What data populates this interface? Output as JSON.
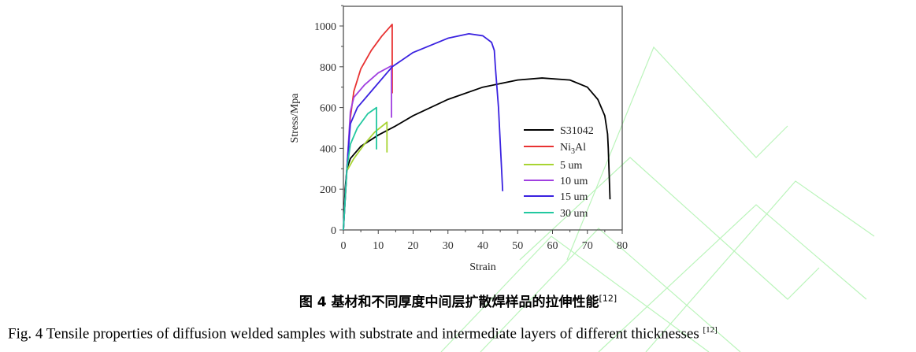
{
  "chart_data": {
    "type": "line",
    "title": "",
    "xlabel": "Strain",
    "ylabel": "Stress/Mpa",
    "xlim": [
      0,
      80
    ],
    "ylim": [
      0,
      1050
    ],
    "xticks": [
      0,
      10,
      20,
      30,
      40,
      50,
      60,
      70,
      80
    ],
    "yticks": [
      0,
      200,
      400,
      600,
      800,
      1000
    ],
    "grid": false,
    "legend_position": "right",
    "series": [
      {
        "name": "S31042",
        "color": "#000000",
        "points": [
          [
            0,
            0
          ],
          [
            0.5,
            200
          ],
          [
            1,
            300
          ],
          [
            2,
            350
          ],
          [
            5,
            410
          ],
          [
            10,
            465
          ],
          [
            15,
            510
          ],
          [
            20,
            560
          ],
          [
            30,
            640
          ],
          [
            40,
            700
          ],
          [
            50,
            735
          ],
          [
            57,
            745
          ],
          [
            65,
            735
          ],
          [
            70,
            700
          ],
          [
            73,
            640
          ],
          [
            75,
            560
          ],
          [
            75.8,
            470
          ],
          [
            76,
            400
          ],
          [
            76.5,
            150
          ]
        ]
      },
      {
        "name": "Ni3Al",
        "color": "#e83232",
        "points": [
          [
            0,
            0
          ],
          [
            1,
            300
          ],
          [
            2,
            550
          ],
          [
            3,
            680
          ],
          [
            5,
            790
          ],
          [
            8,
            880
          ],
          [
            11,
            950
          ],
          [
            14,
            1008
          ],
          [
            14,
            670
          ]
        ]
      },
      {
        "name": "5 um",
        "color": "#a8d432",
        "points": [
          [
            0,
            0
          ],
          [
            1,
            290
          ],
          [
            3,
            350
          ],
          [
            6,
            420
          ],
          [
            9,
            480
          ],
          [
            12.5,
            528
          ],
          [
            12.5,
            380
          ]
        ]
      },
      {
        "name": "10 um",
        "color": "#a040e0",
        "points": [
          [
            0,
            0
          ],
          [
            1,
            300
          ],
          [
            2,
            580
          ],
          [
            3,
            650
          ],
          [
            6,
            710
          ],
          [
            10,
            770
          ],
          [
            13.8,
            805
          ],
          [
            13.8,
            550
          ]
        ]
      },
      {
        "name": "15 um",
        "color": "#3a22e0",
        "points": [
          [
            0,
            0
          ],
          [
            1,
            300
          ],
          [
            2,
            520
          ],
          [
            4,
            600
          ],
          [
            8,
            680
          ],
          [
            14,
            800
          ],
          [
            20,
            870
          ],
          [
            30,
            940
          ],
          [
            36,
            962
          ],
          [
            40,
            952
          ],
          [
            42.5,
            920
          ],
          [
            43.3,
            880
          ],
          [
            43.6,
            800
          ],
          [
            44.5,
            600
          ],
          [
            45.7,
            190
          ]
        ]
      },
      {
        "name": "30 um",
        "color": "#22c8a0",
        "points": [
          [
            0,
            0
          ],
          [
            1,
            300
          ],
          [
            2,
            420
          ],
          [
            4,
            500
          ],
          [
            7,
            570
          ],
          [
            9.5,
            600
          ],
          [
            9.5,
            395
          ]
        ]
      }
    ]
  },
  "legend_labels": {
    "s31042": "S31042",
    "ni3al_pre": "Ni",
    "ni3al_sub": "3",
    "ni3al_post": "Al",
    "l5": "5 um",
    "l10": "10 um",
    "l15": "15 um",
    "l30": "30 um"
  },
  "caption": {
    "cn": "图 4  基材和不同厚度中间层扩散焊样品的拉伸性能",
    "cn_ref": "[12]",
    "en": "Fig. 4 Tensile properties of diffusion welded samples with substrate and intermediate layers of different thicknesses ",
    "en_ref": "[12]"
  }
}
